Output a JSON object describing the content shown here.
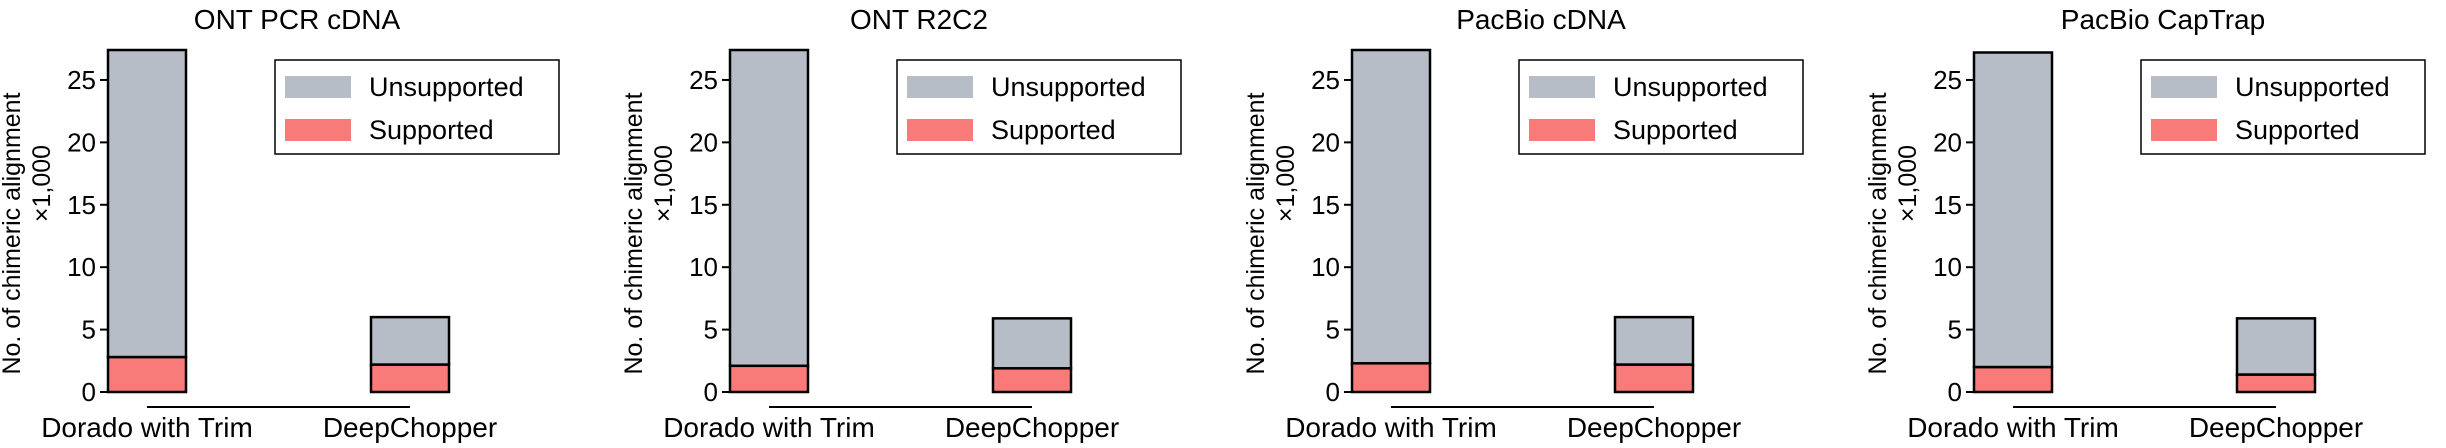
{
  "colors": {
    "unsupported": "#b7bdc6",
    "supported": "#f97b79",
    "axis": "#000000"
  },
  "chart_data": [
    {
      "type": "bar",
      "stacked": true,
      "title": "ONT PCR cDNA",
      "ylabel_line1": "No. of chimeric alignment",
      "ylabel_line2": "×1,000",
      "categories": [
        "Dorado with Trim",
        "DeepChopper"
      ],
      "series": [
        {
          "name": "Supported",
          "values": [
            2.8,
            2.2
          ]
        },
        {
          "name": "Unsupported",
          "values": [
            24.6,
            3.8
          ]
        }
      ],
      "ylim": [
        0,
        27
      ],
      "yticks": [
        0,
        5,
        10,
        15,
        20,
        25
      ],
      "legend": [
        "Unsupported",
        "Supported"
      ],
      "legend_position": "top-right"
    },
    {
      "type": "bar",
      "stacked": true,
      "title": "ONT R2C2",
      "ylabel_line1": "No. of chimeric alignment",
      "ylabel_line2": "×1,000",
      "categories": [
        "Dorado with Trim",
        "DeepChopper"
      ],
      "series": [
        {
          "name": "Supported",
          "values": [
            2.1,
            1.9
          ]
        },
        {
          "name": "Unsupported",
          "values": [
            25.3,
            4.0
          ]
        }
      ],
      "ylim": [
        0,
        27
      ],
      "yticks": [
        0,
        5,
        10,
        15,
        20,
        25
      ],
      "legend": [
        "Unsupported",
        "Supported"
      ],
      "legend_position": "top-right"
    },
    {
      "type": "bar",
      "stacked": true,
      "title": "PacBio cDNA",
      "ylabel_line1": "No. of chimeric alignment",
      "ylabel_line2": "×1,000",
      "categories": [
        "Dorado with Trim",
        "DeepChopper"
      ],
      "series": [
        {
          "name": "Supported",
          "values": [
            2.3,
            2.2
          ]
        },
        {
          "name": "Unsupported",
          "values": [
            25.1,
            3.8
          ]
        }
      ],
      "ylim": [
        0,
        27
      ],
      "yticks": [
        0,
        5,
        10,
        15,
        20,
        25
      ],
      "legend": [
        "Unsupported",
        "Supported"
      ],
      "legend_position": "top-right"
    },
    {
      "type": "bar",
      "stacked": true,
      "title": "PacBio CapTrap",
      "ylabel_line1": "No. of chimeric alignment",
      "ylabel_line2": "×1,000",
      "categories": [
        "Dorado with Trim",
        "DeepChopper"
      ],
      "series": [
        {
          "name": "Supported",
          "values": [
            2.0,
            1.4
          ]
        },
        {
          "name": "Unsupported",
          "values": [
            25.2,
            4.5
          ]
        }
      ],
      "ylim": [
        0,
        27
      ],
      "yticks": [
        0,
        5,
        10,
        15,
        20,
        25
      ],
      "legend": [
        "Unsupported",
        "Supported"
      ],
      "legend_position": "top-right"
    }
  ]
}
